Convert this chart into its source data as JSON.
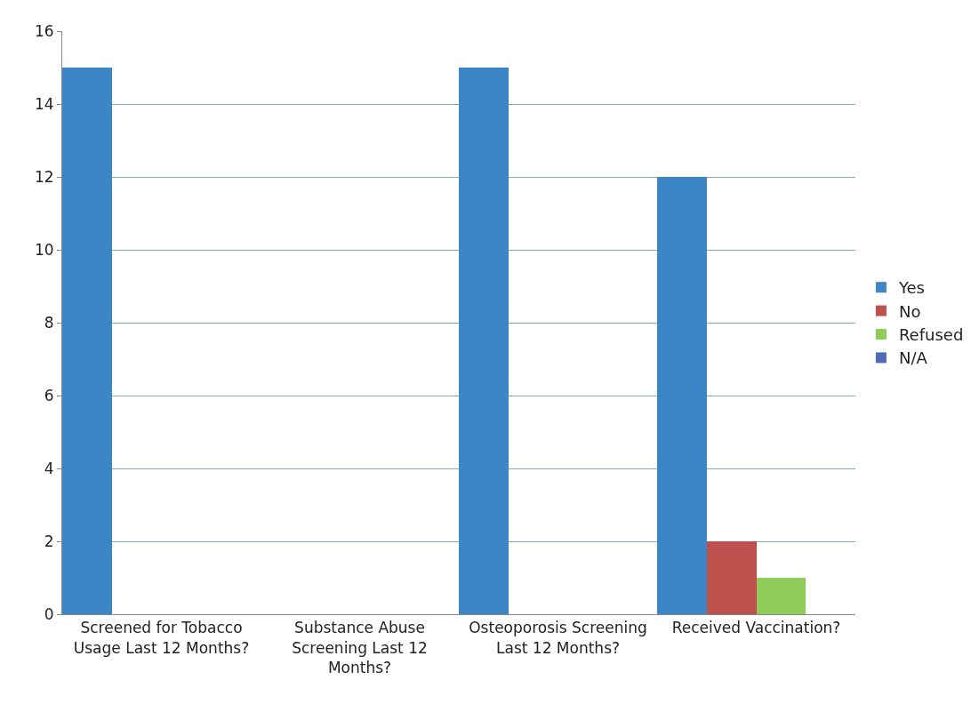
{
  "chart_data": {
    "type": "bar",
    "categories": [
      "Screened for Tobacco Usage Last 12 Months?",
      "Substance Abuse Screening Last 12 Months?",
      "Osteoporosis Screening Last 12 Months?",
      "Received Vaccination?"
    ],
    "series": [
      {
        "name": "Yes",
        "color": "#3c86c6",
        "values": [
          15,
          0,
          15,
          12
        ]
      },
      {
        "name": "No",
        "color": "#c0504d",
        "values": [
          0,
          0,
          0,
          2
        ]
      },
      {
        "name": "Refused",
        "color": "#8fcb58",
        "values": [
          0,
          0,
          0,
          1
        ]
      },
      {
        "name": "N/A",
        "color": "#4f6bb8",
        "values": [
          0,
          0,
          0,
          0
        ]
      }
    ],
    "ylim": [
      0,
      16
    ],
    "yticks": [
      0,
      2,
      4,
      6,
      8,
      10,
      12,
      14,
      16
    ],
    "grid": "y",
    "legend": "right"
  }
}
